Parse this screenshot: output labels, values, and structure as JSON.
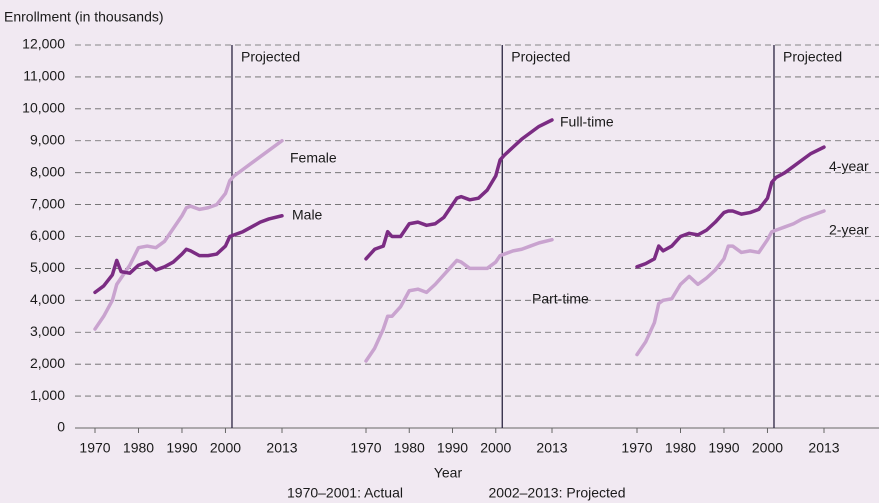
{
  "chart_data": {
    "type": "line",
    "y_label": "Enrollment (in thousands)",
    "x_label": "Year",
    "notes": [
      "1970–2001: Actual",
      "2002–2013: Projected"
    ],
    "ylim": [
      0,
      12000
    ],
    "yticks": [
      0,
      {
        "value": 1000,
        "label": "1,000"
      },
      {
        "value": 2000,
        "label": "2,000"
      },
      {
        "value": 3000,
        "label": "3,000"
      },
      {
        "value": 4000,
        "label": "4,000"
      },
      {
        "value": 5000,
        "label": "5,000"
      },
      {
        "value": 6000,
        "label": "6,000"
      },
      {
        "value": 7000,
        "label": "7,000"
      },
      {
        "value": 8000,
        "label": "8,000"
      },
      {
        "value": 9000,
        "label": "9,000"
      },
      {
        "value": 10000,
        "label": "10,000"
      },
      {
        "value": 11000,
        "label": "11,000"
      },
      {
        "value": 12000,
        "label": "12,000"
      }
    ],
    "grid": true,
    "xlim": [
      1970,
      2013
    ],
    "actual_end": 2001,
    "x": [
      1970,
      1972,
      1974,
      1975,
      1976,
      1978,
      1980,
      1982,
      1984,
      1986,
      1988,
      1990,
      1991,
      1992,
      1994,
      1996,
      1998,
      2000,
      2001,
      2002,
      2004,
      2006,
      2008,
      2010,
      2013
    ],
    "panels": [
      {
        "projected_label": "Projected",
        "xticks": [
          1970,
          1980,
          1990,
          2000,
          2013
        ],
        "series": [
          {
            "name": "Female",
            "color": "#c9a3cf",
            "values": [
              3100,
              3500,
              4000,
              4500,
              4700,
              5100,
              5650,
              5700,
              5650,
              5850,
              6250,
              6650,
              6900,
              6950,
              6850,
              6900,
              7000,
              7350,
              7750,
              7900,
              8100,
              8300,
              8500,
              8700,
              9000
            ]
          },
          {
            "name": "Male",
            "color": "#7b2c83",
            "values": [
              4250,
              4450,
              4800,
              5250,
              4900,
              4850,
              5100,
              5200,
              4950,
              5050,
              5200,
              5450,
              5600,
              5550,
              5400,
              5400,
              5450,
              5700,
              6000,
              6050,
              6150,
              6300,
              6450,
              6550,
              6650
            ]
          }
        ]
      },
      {
        "projected_label": "Projected",
        "xticks": [
          1970,
          1980,
          1990,
          2000,
          2013
        ],
        "series": [
          {
            "name": "Part-time",
            "color": "#c9a3cf",
            "values": [
              2100,
              2500,
              3100,
              3500,
              3500,
              3800,
              4300,
              4350,
              4250,
              4500,
              4800,
              5100,
              5250,
              5200,
              5000,
              5000,
              5000,
              5200,
              5400,
              5450,
              5550,
              5600,
              5700,
              5800,
              5900
            ]
          },
          {
            "name": "Full-time",
            "color": "#7b2c83",
            "values": [
              5300,
              5600,
              5700,
              6150,
              6000,
              6000,
              6400,
              6450,
              6350,
              6400,
              6600,
              7000,
              7200,
              7250,
              7150,
              7200,
              7450,
              7900,
              8400,
              8550,
              8800,
              9050,
              9250,
              9450,
              9650
            ]
          }
        ]
      },
      {
        "projected_label": "Projected",
        "xticks": [
          1970,
          1980,
          1990,
          2000,
          2013
        ],
        "series": [
          {
            "name": "2-year",
            "color": "#c9a3cf",
            "values": [
              2300,
              2700,
              3300,
              3900,
              4000,
              4050,
              4500,
              4750,
              4500,
              4700,
              4950,
              5300,
              5700,
              5700,
              5500,
              5550,
              5500,
              5900,
              6150,
              6200,
              6300,
              6400,
              6550,
              6650,
              6800
            ]
          },
          {
            "name": "4-year",
            "color": "#7b2c83",
            "values": [
              5050,
              5150,
              5300,
              5700,
              5550,
              5700,
              6000,
              6100,
              6050,
              6200,
              6450,
              6750,
              6800,
              6800,
              6700,
              6750,
              6850,
              7200,
              7700,
              7850,
              8000,
              8200,
              8400,
              8600,
              8800
            ]
          }
        ]
      }
    ]
  }
}
